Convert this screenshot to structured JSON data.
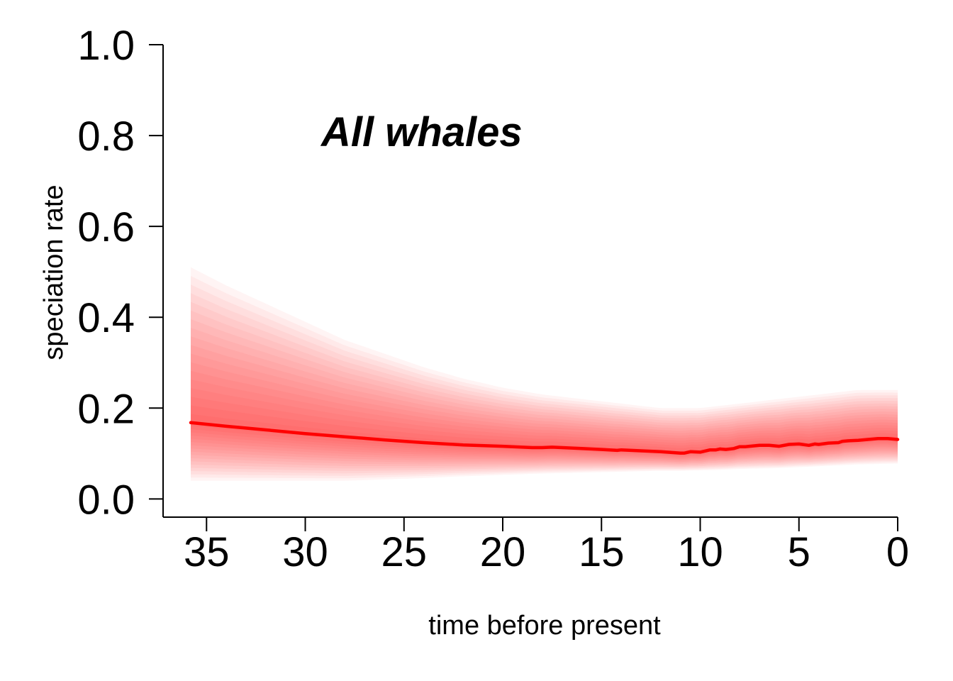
{
  "chart_data": {
    "type": "line",
    "annotation": "All whales",
    "xlabel": "time before present",
    "ylabel": "speciation rate",
    "xlim": [
      37.2,
      0
    ],
    "ylim": [
      -0.04,
      1.0
    ],
    "x_ticks": [
      35,
      30,
      25,
      20,
      15,
      10,
      5,
      0
    ],
    "x_tick_labels": [
      "35",
      "30",
      "25",
      "20",
      "15",
      "10",
      "5",
      "0"
    ],
    "y_ticks": [
      0.0,
      0.2,
      0.4,
      0.6,
      0.8,
      1.0
    ],
    "y_tick_labels": [
      "0.0",
      "0.2",
      "0.4",
      "0.6",
      "0.8",
      "1.0"
    ],
    "grid": false,
    "legend": "none",
    "colors": {
      "line": "#ff0000",
      "band": "#ff0000",
      "axis": "#000000"
    },
    "series": [
      {
        "x": [
          35.8,
          34,
          32,
          30,
          28,
          26,
          24,
          22,
          20,
          19,
          18.5,
          18,
          17.5,
          16,
          15,
          14.2,
          14,
          13.5,
          13,
          12,
          11,
          10.8,
          10.5,
          10,
          9.5,
          9.2,
          9,
          8.7,
          8.3,
          8,
          7.7,
          7.5,
          7,
          6.5,
          6,
          5.5,
          5,
          4.5,
          4.2,
          4,
          3.5,
          3,
          2.8,
          2.5,
          2,
          1.5,
          1,
          0.5,
          0
        ],
        "y": [
          0.168,
          0.16,
          0.152,
          0.144,
          0.137,
          0.13,
          0.124,
          0.119,
          0.116,
          0.114,
          0.113,
          0.113,
          0.114,
          0.111,
          0.109,
          0.107,
          0.108,
          0.107,
          0.106,
          0.104,
          0.101,
          0.101,
          0.104,
          0.103,
          0.108,
          0.108,
          0.11,
          0.109,
          0.111,
          0.115,
          0.115,
          0.116,
          0.118,
          0.118,
          0.116,
          0.12,
          0.121,
          0.118,
          0.121,
          0.12,
          0.123,
          0.124,
          0.127,
          0.128,
          0.129,
          0.131,
          0.133,
          0.133,
          0.131
        ],
        "band_upper": [
          0.51,
          0.47,
          0.43,
          0.39,
          0.35,
          0.32,
          0.29,
          0.265,
          0.245,
          0.23,
          0.22,
          0.21,
          0.2,
          0.2,
          0.2,
          0.205,
          0.21,
          0.215,
          0.22,
          0.225,
          0.23,
          0.235,
          0.24,
          0.24
        ],
        "band_lower": [
          0.04,
          0.04,
          0.04,
          0.04,
          0.04,
          0.043,
          0.046,
          0.05,
          0.053,
          0.056,
          0.058,
          0.06,
          0.062,
          0.062,
          0.063,
          0.064,
          0.066,
          0.067,
          0.068,
          0.07,
          0.072,
          0.074,
          0.076,
          0.078
        ],
        "band_x": [
          35.8,
          34,
          32,
          30,
          28,
          26,
          24,
          22,
          20,
          18,
          16,
          14,
          12,
          11,
          10,
          9,
          8,
          7,
          6,
          5,
          4,
          3,
          2,
          0
        ]
      }
    ]
  }
}
